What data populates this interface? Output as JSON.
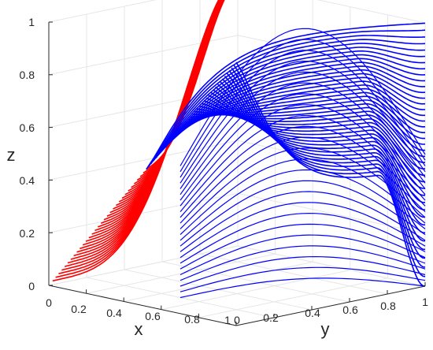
{
  "chart_data": {
    "type": "line",
    "title": "",
    "xlabel": "x",
    "ylabel": "y",
    "zlabel": "z",
    "xlim": [
      0,
      1
    ],
    "ylim": [
      0,
      1
    ],
    "zlim": [
      0,
      1
    ],
    "grid": true,
    "x_ticks": [
      "0",
      "0.2",
      "0.4",
      "0.6",
      "0.8",
      "1"
    ],
    "y_ticks": [
      "0",
      "0.2",
      "0.4",
      "0.6",
      "0.8",
      "1"
    ],
    "z_ticks": [
      "0",
      "0.2",
      "0.4",
      "0.6",
      "0.8",
      "1"
    ],
    "colors": {
      "red": "#ff0000",
      "blue": "#0000ff",
      "grid": "#e6e6e6",
      "axis": "#262626"
    },
    "series": [
      {
        "color": "red",
        "description_count": 32,
        "curves": [
          {
            "start": [
              0.0,
              0.0,
              0.0
            ],
            "end": [
              0.0,
              1.0,
              1.0
            ]
          },
          {
            "start": [
              0.05,
              0.0,
              0.05
            ],
            "end": [
              0.0,
              1.0,
              1.0
            ]
          },
          {
            "start": [
              0.1,
              0.0,
              0.1
            ],
            "end": [
              0.0,
              1.0,
              1.0
            ]
          },
          {
            "start": [
              0.15,
              0.0,
              0.15
            ],
            "end": [
              0.0,
              1.0,
              1.0
            ]
          },
          {
            "start": [
              0.2,
              0.0,
              0.2
            ],
            "end": [
              0.0,
              1.0,
              1.0
            ]
          },
          {
            "start": [
              0.3,
              0.0,
              0.3
            ],
            "end": [
              0.0,
              1.0,
              1.0
            ]
          },
          {
            "start": [
              0.4,
              0.0,
              0.4
            ],
            "end": [
              0.0,
              1.0,
              1.0
            ]
          },
          {
            "start": [
              0.5,
              0.0,
              0.5
            ],
            "end": [
              0.0,
              1.0,
              1.0
            ]
          }
        ]
      },
      {
        "color": "blue",
        "description_count": 40,
        "curves": [
          {
            "start": [
              0.5,
              0.0,
              0.5
            ],
            "end": [
              1.0,
              1.0,
              0.5
            ]
          },
          {
            "start": [
              0.6,
              0.0,
              0.6
            ],
            "end": [
              1.0,
              1.0,
              0.5
            ]
          },
          {
            "start": [
              0.8,
              0.0,
              0.8
            ],
            "end": [
              1.0,
              1.0,
              0.5
            ]
          },
          {
            "start": [
              1.0,
              0.0,
              1.0
            ],
            "end": [
              1.0,
              1.0,
              0.0
            ]
          }
        ]
      }
    ]
  }
}
